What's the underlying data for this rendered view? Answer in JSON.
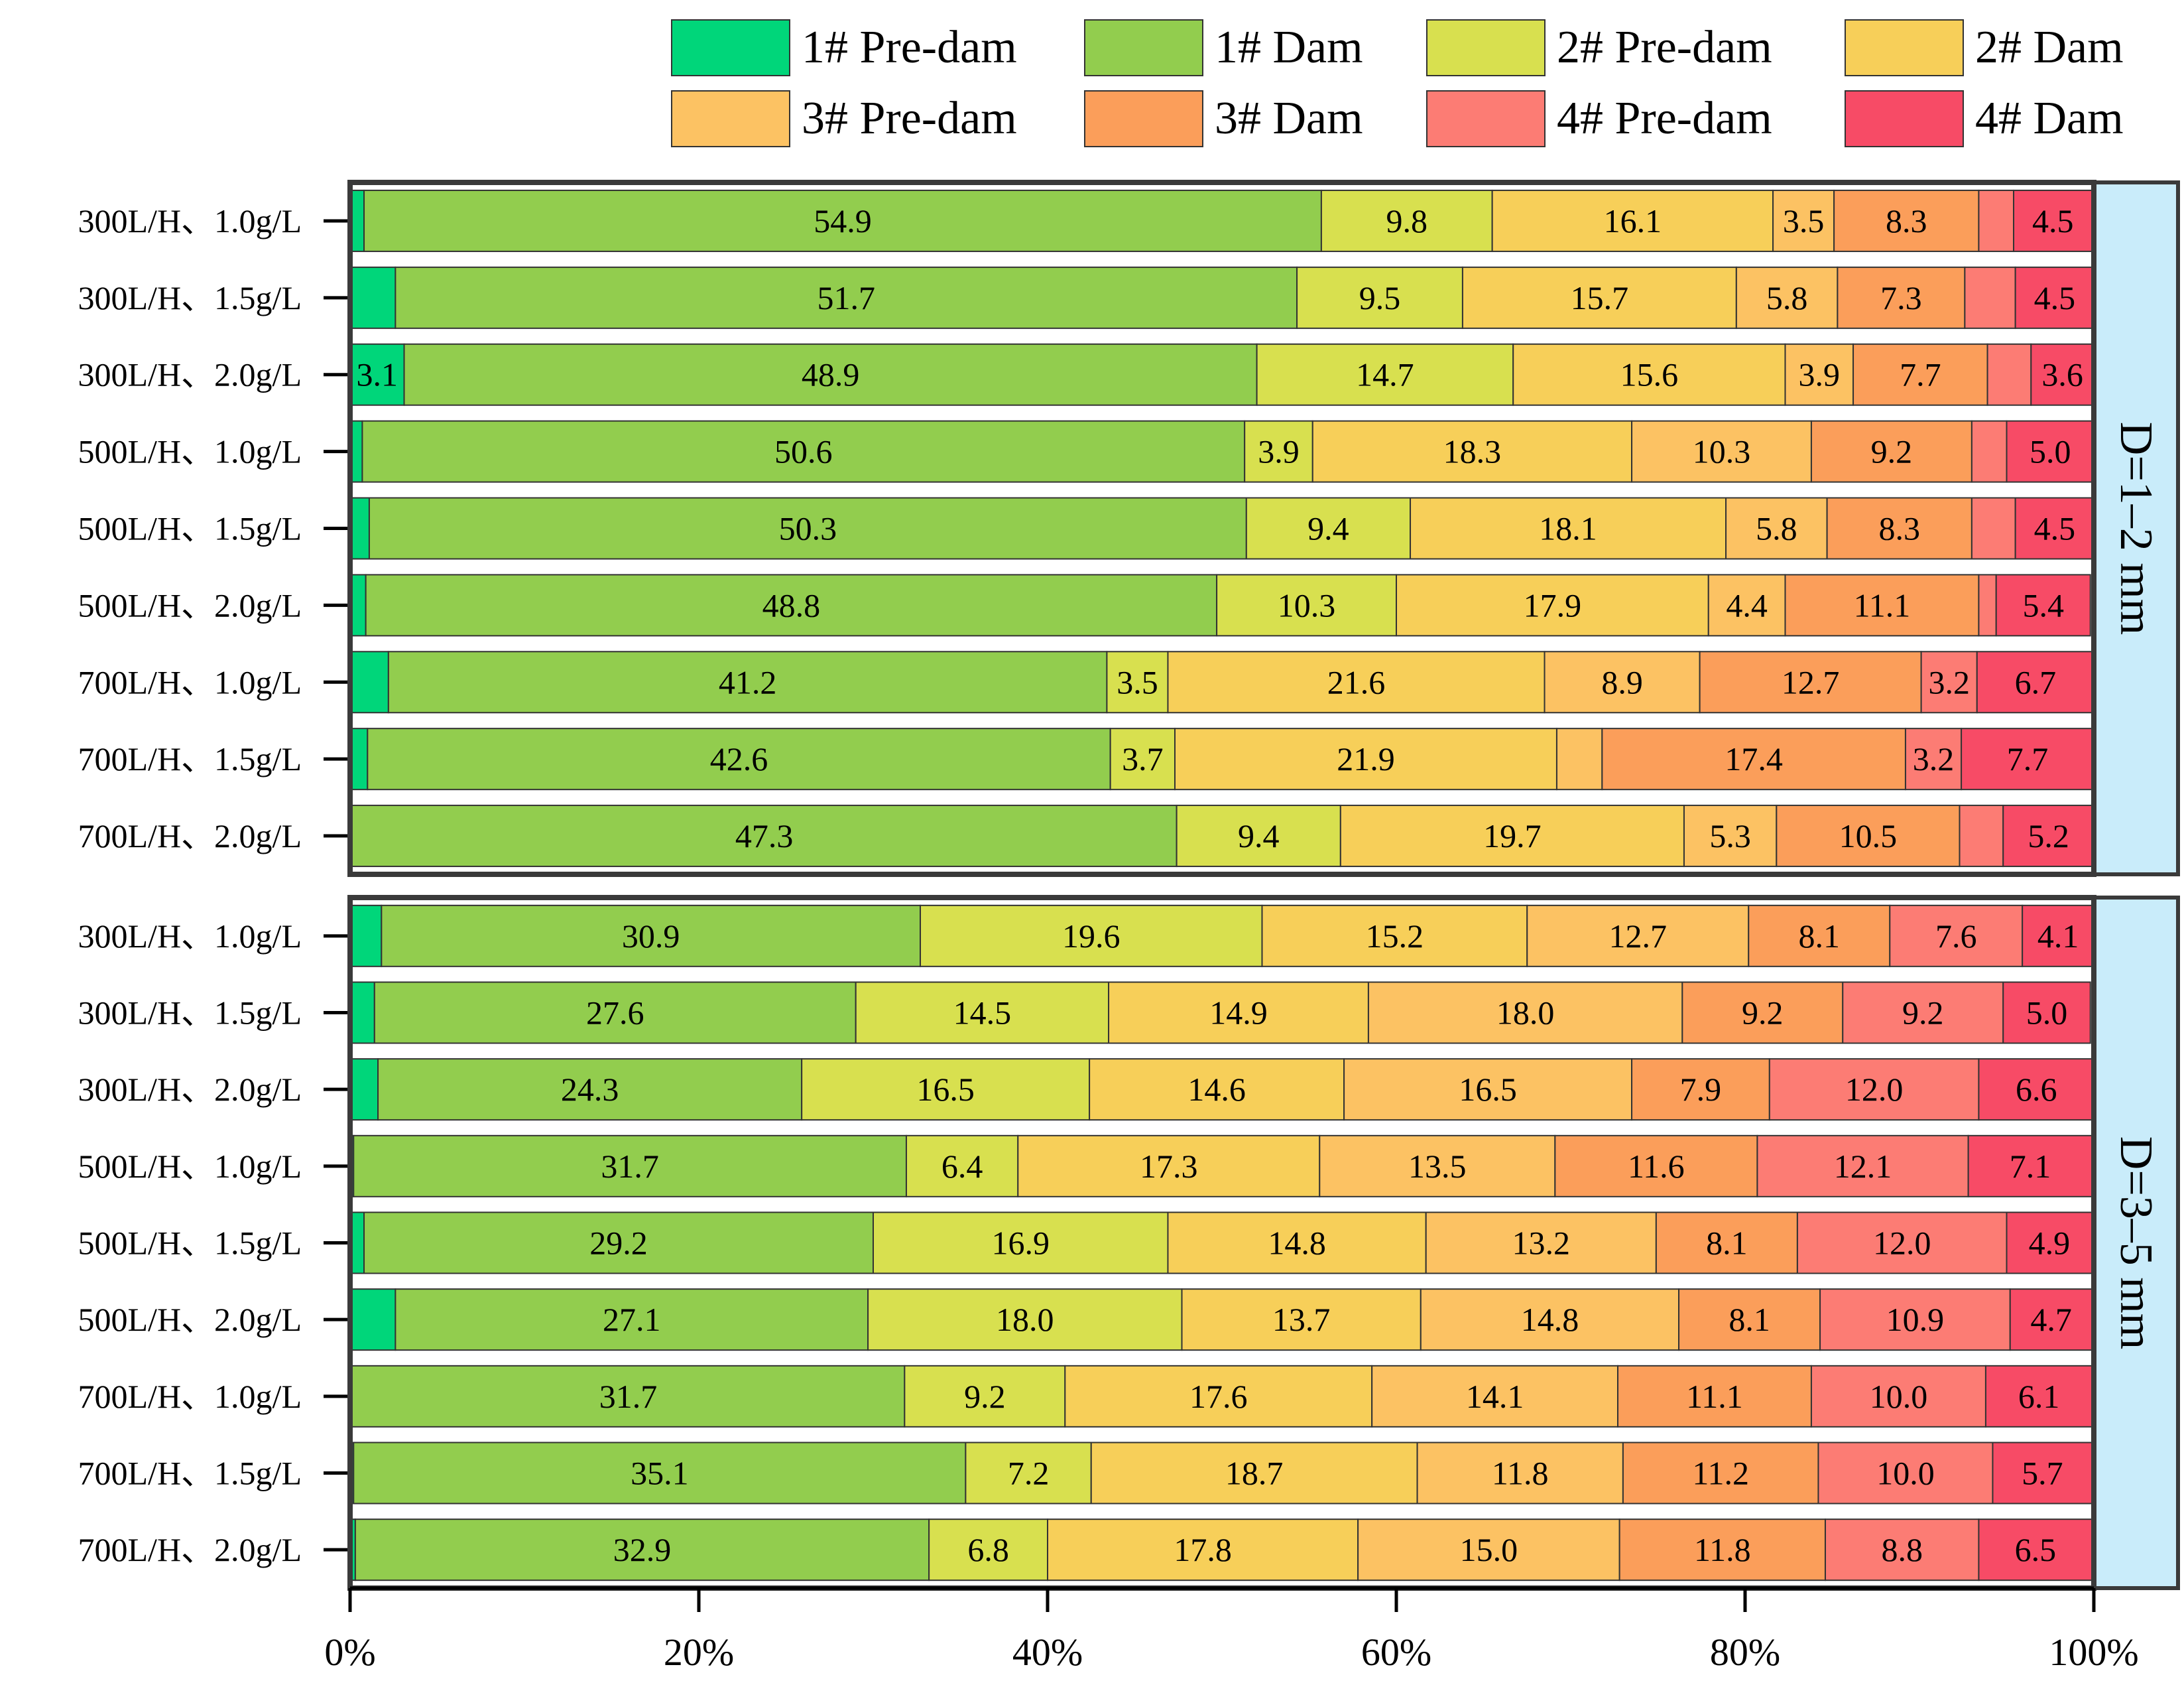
{
  "chart_data": {
    "type": "bar",
    "orientation": "horizontal",
    "stacked": true,
    "normalized": true,
    "xlim": [
      0,
      100
    ],
    "xticks": [
      0,
      20,
      40,
      60,
      80,
      100
    ],
    "xtick_labels": [
      "0%",
      "20%",
      "40%",
      "60%",
      "80%",
      "100%"
    ],
    "legend_position": "top-right",
    "series": [
      {
        "name": "1# Pre-dam",
        "color": "#00D67A"
      },
      {
        "name": "1# Dam",
        "color": "#92CD4E"
      },
      {
        "name": "2# Pre-dam",
        "color": "#D8E04F"
      },
      {
        "name": "2# Dam",
        "color": "#F7CF59"
      },
      {
        "name": "3# Pre-dam",
        "color": "#FCC263"
      },
      {
        "name": "3# Dam",
        "color": "#FB9E5A"
      },
      {
        "name": "4# Pre-dam",
        "color": "#FC7C74"
      },
      {
        "name": "4# Dam",
        "color": "#F74B66"
      }
    ],
    "panels": [
      {
        "label": "D=1–2 mm",
        "rows": [
          {
            "category": "300L/H、1.0g/L",
            "values": [
              0.8,
              54.9,
              9.8,
              16.1,
              3.5,
              8.3,
              2.0,
              4.5
            ],
            "labels": [
              "",
              "54.9",
              "9.8",
              "16.1",
              "3.5",
              "8.3",
              "",
              "4.5"
            ]
          },
          {
            "category": "300L/H、1.5g/L",
            "values": [
              2.6,
              51.7,
              9.5,
              15.7,
              5.8,
              7.3,
              2.9,
              4.5
            ],
            "labels": [
              "",
              "51.7",
              "9.5",
              "15.7",
              "5.8",
              "7.3",
              "",
              "4.5"
            ]
          },
          {
            "category": "300L/H、2.0g/L",
            "values": [
              3.1,
              48.9,
              14.7,
              15.6,
              3.9,
              7.7,
              2.5,
              3.6
            ],
            "labels": [
              "3.1",
              "48.9",
              "14.7",
              "15.6",
              "3.9",
              "7.7",
              "",
              "3.6"
            ]
          },
          {
            "category": "500L/H、1.0g/L",
            "values": [
              0.7,
              50.6,
              3.9,
              18.3,
              10.3,
              9.2,
              2.0,
              5.0
            ],
            "labels": [
              "",
              "50.6",
              "3.9",
              "18.3",
              "10.3",
              "9.2",
              "",
              "5.0"
            ]
          },
          {
            "category": "500L/H、1.5g/L",
            "values": [
              1.1,
              50.3,
              9.4,
              18.1,
              5.8,
              8.3,
              2.5,
              4.5
            ],
            "labels": [
              "",
              "50.3",
              "9.4",
              "18.1",
              "5.8",
              "8.3",
              "",
              "4.5"
            ]
          },
          {
            "category": "500L/H、2.0g/L",
            "values": [
              0.9,
              48.8,
              10.3,
              17.9,
              4.4,
              11.1,
              1.0,
              5.4
            ],
            "labels": [
              "",
              "48.8",
              "10.3",
              "17.9",
              "4.4",
              "11.1",
              "",
              "5.4"
            ]
          },
          {
            "category": "700L/H、1.0g/L",
            "values": [
              2.2,
              41.2,
              3.5,
              21.6,
              8.9,
              12.7,
              3.2,
              6.7
            ],
            "labels": [
              "",
              "41.2",
              "3.5",
              "21.6",
              "8.9",
              "12.7",
              "3.2",
              "6.7"
            ]
          },
          {
            "category": "700L/H、1.5g/L",
            "values": [
              1.0,
              42.6,
              3.7,
              21.9,
              2.6,
              17.4,
              3.2,
              7.7
            ],
            "labels": [
              "",
              "42.6",
              "3.7",
              "21.9",
              "",
              "17.4",
              "3.2",
              "7.7"
            ]
          },
          {
            "category": "700L/H、2.0g/L",
            "values": [
              0.1,
              47.3,
              9.4,
              19.7,
              5.3,
              10.5,
              2.5,
              5.2
            ],
            "labels": [
              "",
              "47.3",
              "9.4",
              "19.7",
              "5.3",
              "10.5",
              "",
              "5.2"
            ]
          }
        ]
      },
      {
        "label": "D=3–5 mm",
        "rows": [
          {
            "category": "300L/H、1.0g/L",
            "values": [
              1.8,
              30.9,
              19.6,
              15.2,
              12.7,
              8.1,
              7.6,
              4.1
            ],
            "labels": [
              "",
              "30.9",
              "19.6",
              "15.2",
              "12.7",
              "8.1",
              "7.6",
              "4.1"
            ]
          },
          {
            "category": "300L/H、1.5g/L",
            "values": [
              1.4,
              27.6,
              14.5,
              14.9,
              18.0,
              9.2,
              9.2,
              5.0
            ],
            "labels": [
              "",
              "27.6",
              "14.5",
              "14.9",
              "18.0",
              "9.2",
              "9.2",
              "5.0"
            ]
          },
          {
            "category": "300L/H、2.0g/L",
            "values": [
              1.6,
              24.3,
              16.5,
              14.6,
              16.5,
              7.9,
              12.0,
              6.6
            ],
            "labels": [
              "",
              "24.3",
              "16.5",
              "14.6",
              "16.5",
              "7.9",
              "12.0",
              "6.6"
            ]
          },
          {
            "category": "500L/H、1.0g/L",
            "values": [
              0.2,
              31.7,
              6.4,
              17.3,
              13.5,
              11.6,
              12.1,
              7.1
            ],
            "labels": [
              "",
              "31.7",
              "6.4",
              "17.3",
              "13.5",
              "11.6",
              "12.1",
              "7.1"
            ]
          },
          {
            "category": "500L/H、1.5g/L",
            "values": [
              0.8,
              29.2,
              16.9,
              14.8,
              13.2,
              8.1,
              12.0,
              4.9
            ],
            "labels": [
              "",
              "29.2",
              "16.9",
              "14.8",
              "13.2",
              "8.1",
              "12.0",
              "4.9"
            ]
          },
          {
            "category": "500L/H、2.0g/L",
            "values": [
              2.6,
              27.1,
              18.0,
              13.7,
              14.8,
              8.1,
              10.9,
              4.7
            ],
            "labels": [
              "",
              "27.1",
              "18.0",
              "13.7",
              "14.8",
              "8.1",
              "10.9",
              "4.7"
            ]
          },
          {
            "category": "700L/H、1.0g/L",
            "values": [
              0.1,
              31.7,
              9.2,
              17.6,
              14.1,
              11.1,
              10.0,
              6.1
            ],
            "labels": [
              "",
              "31.7",
              "9.2",
              "17.6",
              "14.1",
              "11.1",
              "10.0",
              "6.1"
            ]
          },
          {
            "category": "700L/H、1.5g/L",
            "values": [
              0.2,
              35.1,
              7.2,
              18.7,
              11.8,
              11.2,
              10.0,
              5.7
            ],
            "labels": [
              "",
              "35.1",
              "7.2",
              "18.7",
              "11.8",
              "11.2",
              "10.0",
              "5.7"
            ]
          },
          {
            "category": "700L/H、2.0g/L",
            "values": [
              0.3,
              32.9,
              6.8,
              17.8,
              15.0,
              11.8,
              8.8,
              6.5
            ],
            "labels": [
              "",
              "32.9",
              "6.8",
              "17.8",
              "15.0",
              "11.8",
              "8.8",
              "6.5"
            ]
          }
        ]
      }
    ]
  }
}
